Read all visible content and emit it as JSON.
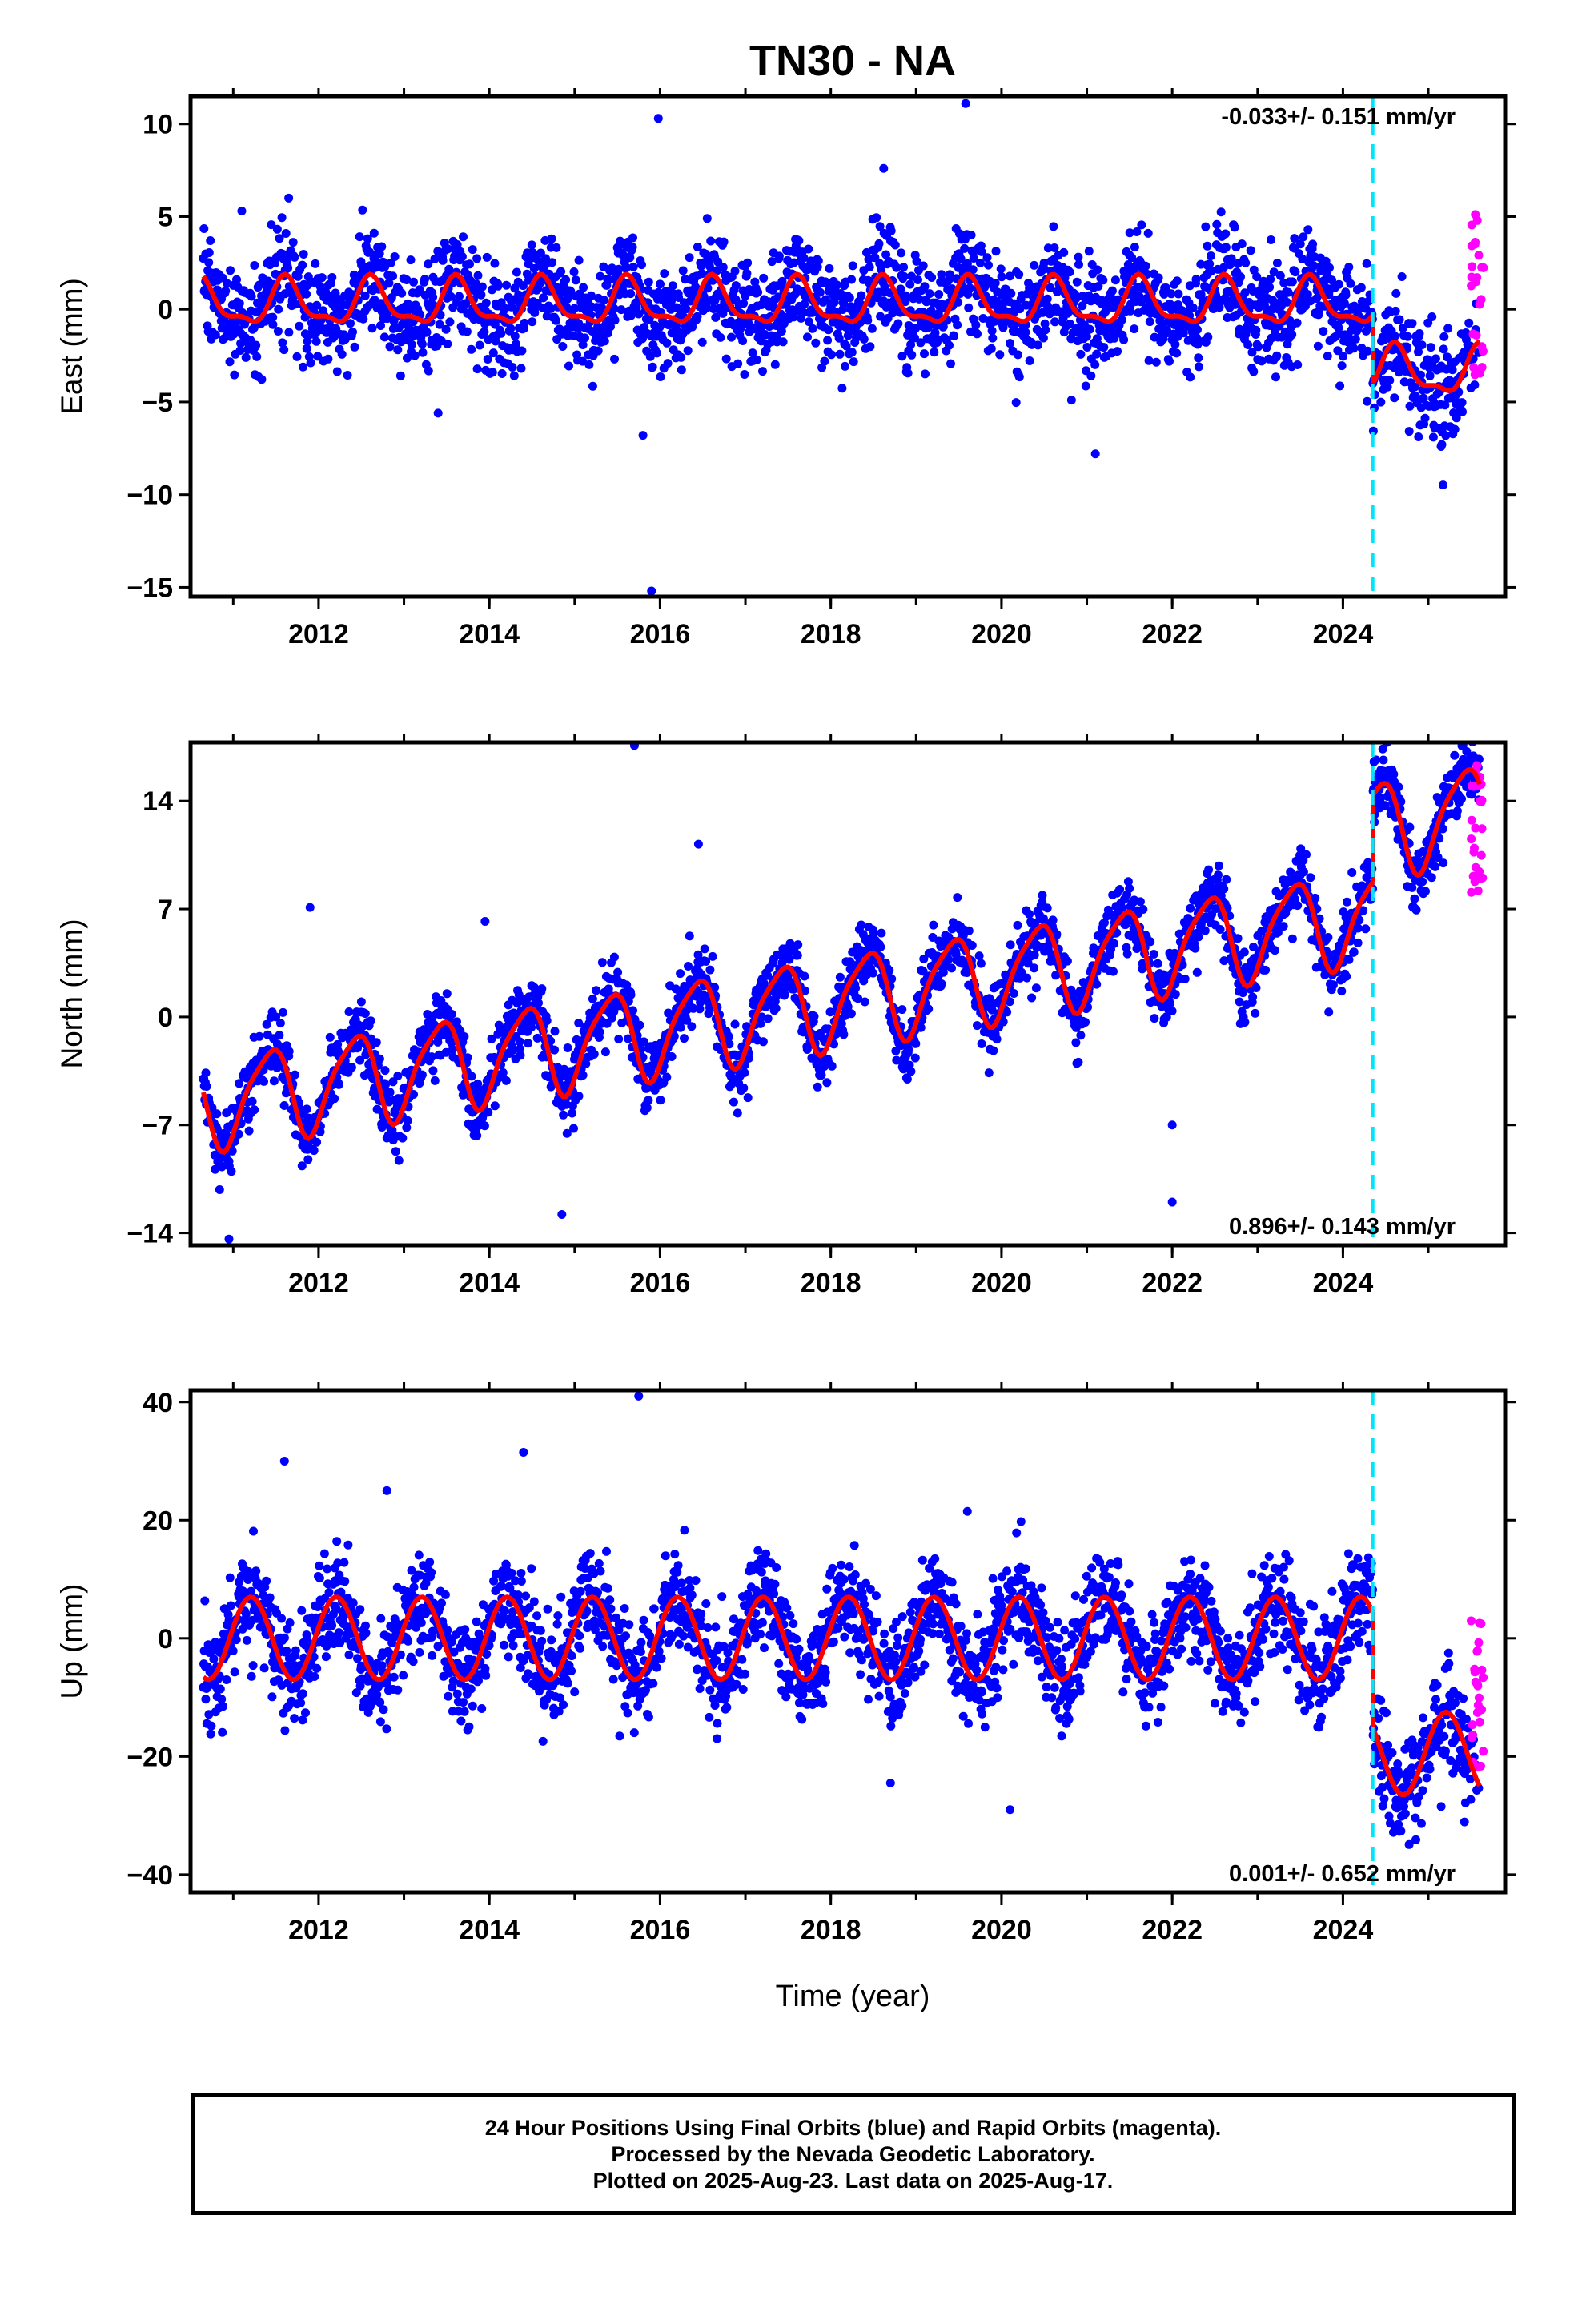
{
  "title": "TN30 - NA",
  "x_axis_label": "Time (year)",
  "footer": {
    "line1": "24 Hour Positions Using Final Orbits (blue) and Rapid Orbits (magenta).",
    "line2": "Processed by the Nevada Geodetic Laboratory.",
    "line3": "Plotted on 2025-Aug-23. Last data on 2025-Aug-17."
  },
  "colors": {
    "final_orbits": "#0000ff",
    "rapid_orbits": "#ff00ff",
    "model_fit": "#ff0000",
    "equipment_change": "#00e5ff",
    "axes": "#000000"
  },
  "chart_data": [
    {
      "type": "scatter",
      "component": "East",
      "ylabel": "East (mm)",
      "velocity_label": "-0.033+/- 0.151 mm/yr",
      "velocity_label_position": "top-right",
      "xlim": [
        2010.5,
        2025.9
      ],
      "ylim": [
        -15.5,
        11.5
      ],
      "xticks": [
        2012,
        2014,
        2016,
        2018,
        2020,
        2022,
        2024
      ],
      "yticks": [
        10,
        5,
        0,
        -5,
        -10,
        -15
      ],
      "grid": false,
      "equipment_change_x": 2024.35,
      "rapid_start_x": 2025.38,
      "series": [
        {
          "role": "final_orbits",
          "x": [
            2010.65,
            2025.6
          ],
          "noise_sd": 1.4,
          "annual_amp": 1.15,
          "semiannual_amp": 0.45,
          "offset": 0.3,
          "trend": 0.0,
          "pre_offset": 0.3,
          "post_offset": -3.4,
          "post_annual_amp": 1.2
        },
        {
          "role": "rapid_orbits",
          "x": [
            2025.5,
            2025.65
          ],
          "y_range": [
            -3.6,
            5.6
          ]
        },
        {
          "role": "outliers",
          "points": [
            [
              2015.98,
              10.3
            ],
            [
              2019.58,
              11.1
            ],
            [
              2018.62,
              7.6
            ],
            [
              2015.8,
              -6.8
            ],
            [
              2015.9,
              -15.2
            ],
            [
              2021.1,
              -7.8
            ],
            [
              2020.82,
              -4.9
            ],
            [
              2025.15,
              -7.4
            ],
            [
              2011.1,
              5.3
            ],
            [
              2011.65,
              6.0
            ],
            [
              2013.4,
              -5.6
            ]
          ]
        },
        {
          "role": "model_fit"
        }
      ]
    },
    {
      "type": "scatter",
      "component": "North",
      "ylabel": "North (mm)",
      "velocity_label": "0.896+/- 0.143 mm/yr",
      "velocity_label_position": "bottom-right",
      "xlim": [
        2010.5,
        2025.9
      ],
      "ylim": [
        -14.8,
        17.8
      ],
      "xticks": [
        2012,
        2014,
        2016,
        2018,
        2020,
        2022,
        2024
      ],
      "yticks": [
        14,
        7,
        0,
        -7,
        -14
      ],
      "grid": false,
      "equipment_change_x": 2024.35,
      "rapid_start_x": 2025.38,
      "series": [
        {
          "role": "final_orbits",
          "x": [
            2010.65,
            2025.6
          ],
          "noise_sd": 1.1,
          "annual_amp": 2.9,
          "semiannual_amp": 0.6,
          "offset": -5.6,
          "trend": 0.896,
          "pre_offset": -5.6,
          "post_offset": 12.2,
          "post_annual_amp": 3.0
        },
        {
          "role": "rapid_orbits",
          "x": [
            2025.5,
            2025.65
          ],
          "y_range": [
            7.8,
            16.6
          ]
        },
        {
          "role": "outliers",
          "points": [
            [
              2015.7,
              17.6
            ],
            [
              2016.45,
              11.2
            ],
            [
              2011.9,
              7.1
            ],
            [
              2013.95,
              6.2
            ],
            [
              2010.95,
              -14.4
            ],
            [
              2014.85,
              -12.8
            ],
            [
              2022.0,
              -12.0
            ],
            [
              2022.0,
              -7.0
            ]
          ]
        },
        {
          "role": "model_fit"
        }
      ]
    },
    {
      "type": "scatter",
      "component": "Up",
      "ylabel": "Up (mm)",
      "velocity_label": "0.001+/- 0.652 mm/yr",
      "velocity_label_position": "bottom-right",
      "xlim": [
        2010.5,
        2025.9
      ],
      "ylim": [
        -43,
        42
      ],
      "xticks": [
        2012,
        2014,
        2016,
        2018,
        2020,
        2022,
        2024
      ],
      "yticks": [
        40,
        20,
        0,
        -20,
        -40
      ],
      "grid": false,
      "equipment_change_x": 2024.35,
      "rapid_start_x": 2025.38,
      "series": [
        {
          "role": "final_orbits",
          "x": [
            2010.65,
            2025.6
          ],
          "noise_sd": 4.3,
          "annual_amp": 7.0,
          "semiannual_amp": 0.0,
          "offset": 0.0,
          "trend": 0.0,
          "pre_offset": 0.0,
          "post_offset": -19.5,
          "post_annual_amp": 7.0
        },
        {
          "role": "rapid_orbits",
          "x": [
            2025.5,
            2025.65
          ],
          "y_range": [
            -23.5,
            3.2
          ]
        },
        {
          "role": "outliers",
          "points": [
            [
              2015.75,
              41.0
            ],
            [
              2011.6,
              30.0
            ],
            [
              2014.4,
              31.5
            ],
            [
              2018.7,
              -24.5
            ],
            [
              2019.6,
              21.5
            ],
            [
              2020.1,
              -29.0
            ],
            [
              2012.8,
              25.0
            ]
          ]
        },
        {
          "role": "model_fit"
        }
      ]
    }
  ]
}
